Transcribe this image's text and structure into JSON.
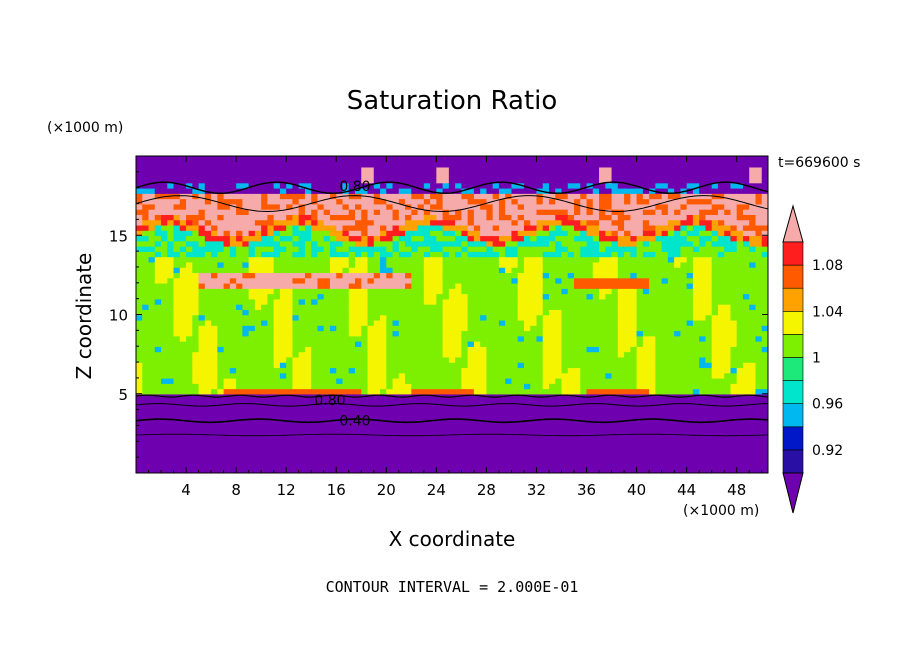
{
  "chart_data": {
    "type": "heatmap",
    "title": "Saturation Ratio",
    "xlabel": "X coordinate",
    "ylabel": "Z coordinate",
    "x_unit": "(×1000 m)",
    "y_unit": "(×1000 m)",
    "time_label": "t=669600 s",
    "footer": "CONTOUR INTERVAL = 2.000E-01",
    "xlim": [
      0,
      50.5
    ],
    "ylim": [
      0,
      20
    ],
    "x_ticks": [
      4,
      8,
      12,
      16,
      20,
      24,
      28,
      32,
      36,
      40,
      44,
      48
    ],
    "x_tick_labels": [
      "4",
      "8",
      "12",
      "16",
      "20",
      "24",
      "28",
      "32",
      "36",
      "40",
      "44",
      "48"
    ],
    "y_ticks": [
      5,
      10,
      15
    ],
    "y_tick_labels": [
      "5",
      "10",
      "15"
    ],
    "contour_labels": [
      {
        "text": "0.80",
        "x": 17.5,
        "y": 18.1
      },
      {
        "text": "0.80",
        "x": 15.5,
        "y": 4.6
      },
      {
        "text": "0.40",
        "x": 17.5,
        "y": 3.3
      }
    ],
    "colorbar": {
      "levels": [
        0.9,
        0.92,
        0.94,
        0.96,
        0.98,
        1.0,
        1.02,
        1.04,
        1.06,
        1.08,
        1.1
      ],
      "tick_labels": [
        "0.92",
        "0.96",
        "1",
        "1.04",
        "1.08"
      ],
      "tick_values": [
        0.92,
        0.96,
        1.0,
        1.04,
        1.08
      ],
      "colors": [
        "#6f00b0",
        "#2a0fa5",
        "#0018c8",
        "#00b8f0",
        "#00e5cc",
        "#1de87a",
        "#7cf000",
        "#f5f500",
        "#ffa200",
        "#ff5a00",
        "#ff1e1e",
        "#f7aaaa"
      ],
      "under_color": "#6f00b0",
      "over_color": "#f7aaaa"
    },
    "layers": [
      {
        "z_from": 0,
        "z_to": 4.9,
        "description_value": 0.5,
        "color": "#6f00b0"
      },
      {
        "z_from": 4.9,
        "z_to": 13.5,
        "value": 1.0,
        "color": "#1de87a"
      },
      {
        "z_from": 11.5,
        "z_to": 12.5,
        "value": 1.1,
        "color": "#f7aaaa"
      },
      {
        "z_from": 13.5,
        "z_to": 17.5,
        "value": 1.1,
        "color": "#f7aaaa"
      },
      {
        "z_from": 17.5,
        "z_to": 20,
        "value": 0.8,
        "color": "#6f00b0"
      }
    ]
  }
}
